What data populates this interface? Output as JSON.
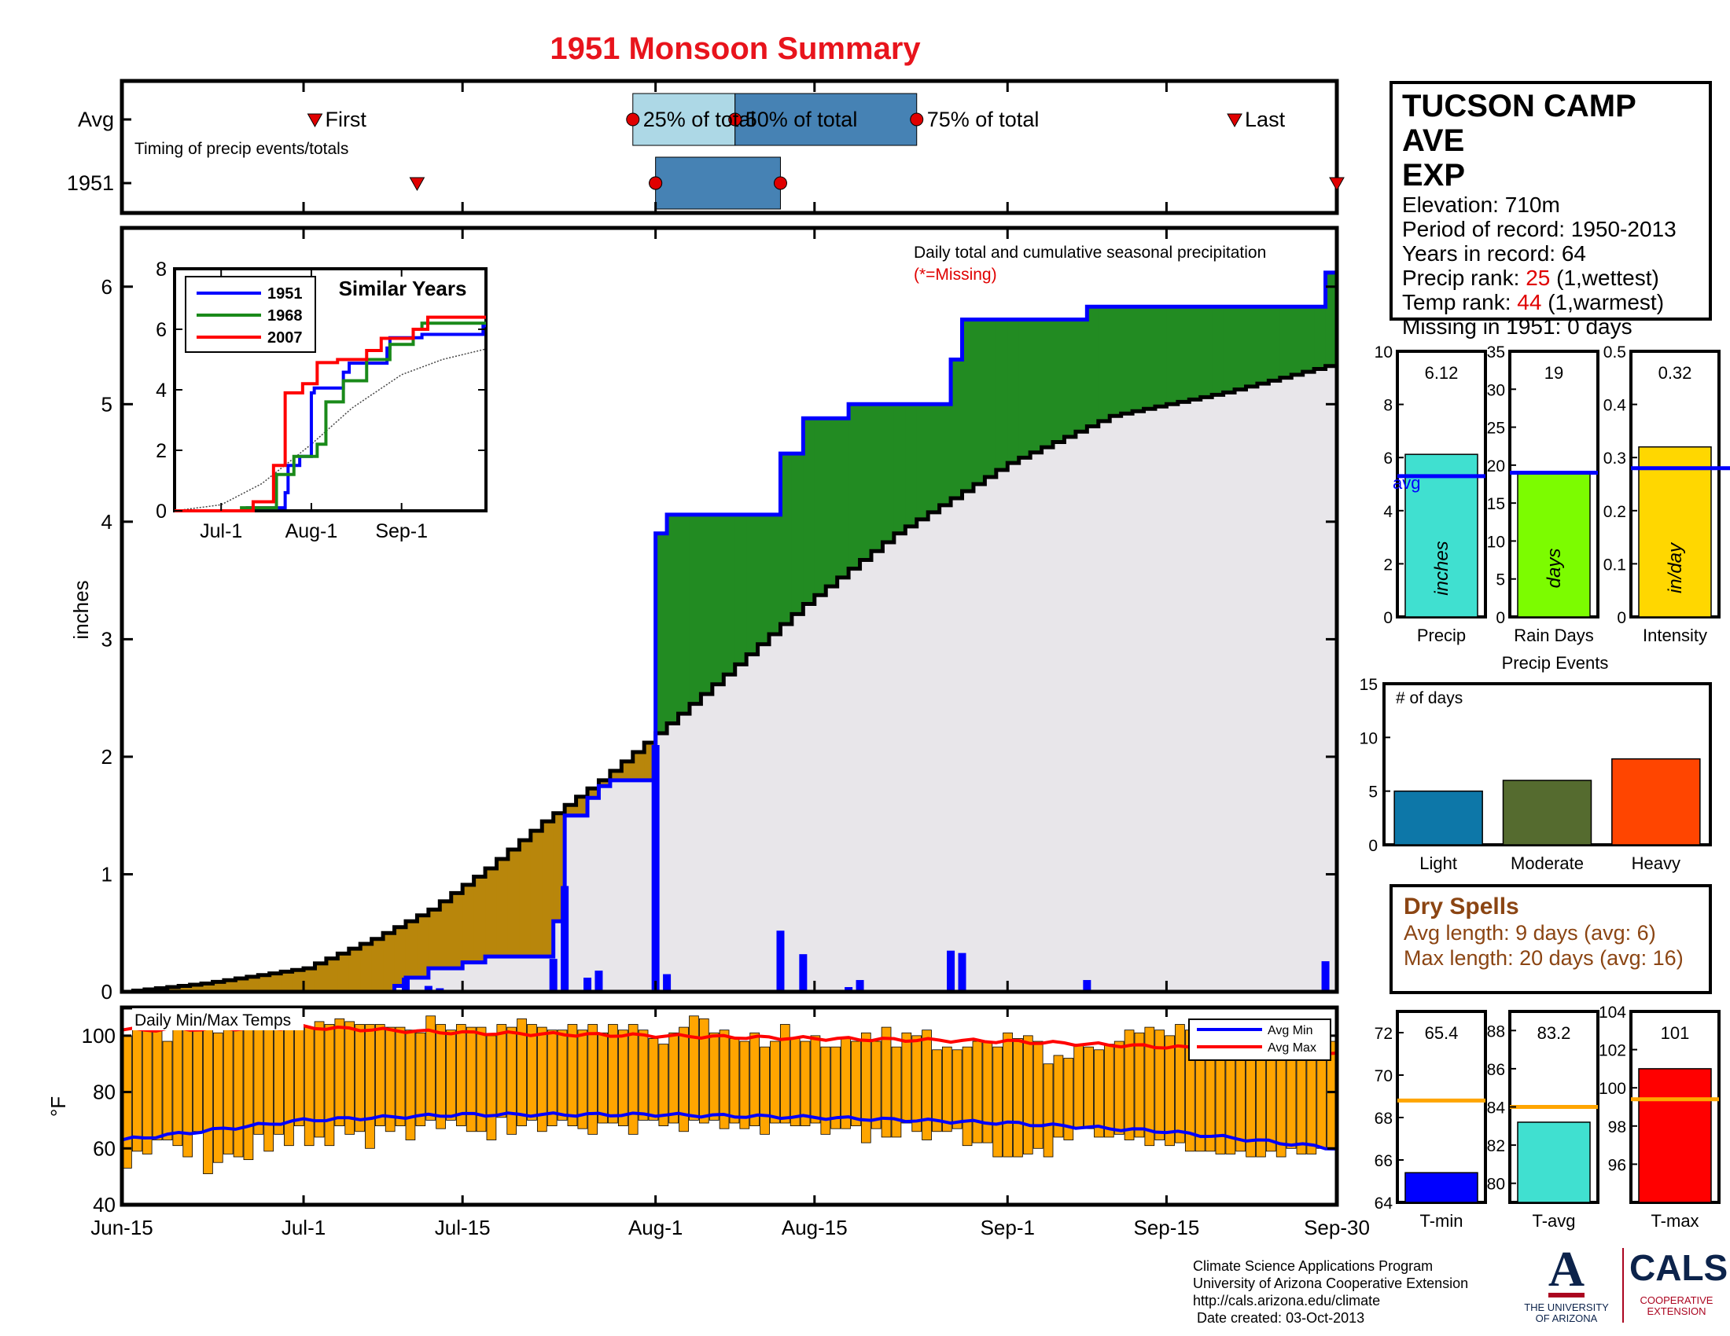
{
  "title": "1951 Monsoon Summary",
  "colors": {
    "title": "#e8141c",
    "precip_line": "#0000ff",
    "above_fill": "#228b22",
    "below_fill": "#b8860b",
    "cum_avg_fill": "#e8e6ea",
    "bar_light": "#add8e6",
    "bar_dark": "#4682b4",
    "temp_bar": "#ffa500",
    "avg_min": "#0000ff",
    "avg_max": "#ff0000"
  },
  "info": {
    "station_line1": "TUCSON CAMP AVE",
    "station_line2": "EXP",
    "elevation": "Elevation: 710m",
    "period": "Period of record: 1950-2013",
    "years": "Years in record: 64",
    "precip_rank_label": "Precip rank:",
    "precip_rank_value": "25",
    "precip_rank_note": "(1,wettest)",
    "temp_rank_label": "Temp rank:",
    "temp_rank_value": "44",
    "temp_rank_note": "(1,warmest)",
    "missing": "Missing in 1951: 0 days"
  },
  "dry_spells": {
    "title": "Dry Spells",
    "avg": "Avg length: 9 days (avg: 6)",
    "max": "Max length: 20 days (avg: 16)"
  },
  "footer": {
    "line1": "Climate Science Applications Program",
    "line2": "University of Arizona Cooperative Extension",
    "line3": "http://cals.arizona.edu/climate",
    "line4": " Date created: 03-Oct-2013"
  },
  "logos": {
    "ua_letter": "A",
    "ua_line1": "THE UNIVERSITY",
    "ua_line2": "OF ARIZONA",
    "cals": "CALS",
    "cals_line1": "COOPERATIVE",
    "cals_line2": "EXTENSION"
  },
  "chart_data": [
    {
      "id": "timing",
      "type": "bar",
      "title": "Timing of precip events/totals",
      "rows": [
        "Avg",
        "1951"
      ],
      "labels": {
        "first": "First",
        "p25": "25% of total",
        "p50": "50% of total",
        "p75": "75% of total",
        "last": "Last"
      },
      "avg": {
        "first": "Jul-2",
        "p25": "Jul-30",
        "p50": "Aug-8",
        "p75": "Aug-24",
        "last": "Sep-21"
      },
      "year": {
        "first": "Jul-11",
        "p25": "Aug-1",
        "p50": "Aug-1",
        "p75": "Aug-12",
        "last": "Sep-30"
      }
    },
    {
      "id": "precip",
      "type": "area",
      "title": "Daily total and cumulative seasonal precipitation",
      "subtitle": "(*=Missing)",
      "ylabel": "inches",
      "ylim": [
        0,
        6.5
      ],
      "yticks": [
        0,
        1,
        2,
        3,
        4,
        5,
        6
      ],
      "xticks": [
        "Jun-15",
        "Jul-1",
        "Jul-15",
        "Aug-1",
        "Aug-15",
        "Sep-1",
        "Sep-15",
        "Sep-30"
      ],
      "avg_cumulative": [
        {
          "x": "Jun-15",
          "y": 0
        },
        {
          "x": "Jun-22",
          "y": 0.07
        },
        {
          "x": "Jul-1",
          "y": 0.2
        },
        {
          "x": "Jul-7",
          "y": 0.45
        },
        {
          "x": "Jul-12",
          "y": 0.7
        },
        {
          "x": "Jul-17",
          "y": 1.05
        },
        {
          "x": "Jul-22",
          "y": 1.45
        },
        {
          "x": "Jul-27",
          "y": 1.8
        },
        {
          "x": "Aug-1",
          "y": 2.2
        },
        {
          "x": "Aug-7",
          "y": 2.7
        },
        {
          "x": "Aug-14",
          "y": 3.3
        },
        {
          "x": "Aug-22",
          "y": 3.9
        },
        {
          "x": "Sep-1",
          "y": 4.5
        },
        {
          "x": "Sep-10",
          "y": 4.9
        },
        {
          "x": "Sep-20",
          "y": 5.1
        },
        {
          "x": "Sep-30",
          "y": 5.35
        }
      ],
      "year_cumulative": [
        {
          "x": "Jun-15",
          "y": 0
        },
        {
          "x": "Jul-9",
          "y": 0.05
        },
        {
          "x": "Jul-10",
          "y": 0.12
        },
        {
          "x": "Jul-12",
          "y": 0.2
        },
        {
          "x": "Jul-15",
          "y": 0.25
        },
        {
          "x": "Jul-17",
          "y": 0.3
        },
        {
          "x": "Jul-23",
          "y": 0.6
        },
        {
          "x": "Jul-24",
          "y": 1.5
        },
        {
          "x": "Jul-26",
          "y": 1.65
        },
        {
          "x": "Jul-27",
          "y": 1.75
        },
        {
          "x": "Jul-28",
          "y": 1.8
        },
        {
          "x": "Aug-1",
          "y": 3.9
        },
        {
          "x": "Aug-2",
          "y": 4.06
        },
        {
          "x": "Aug-12",
          "y": 4.58
        },
        {
          "x": "Aug-14",
          "y": 4.88
        },
        {
          "x": "Aug-18",
          "y": 5.0
        },
        {
          "x": "Aug-27",
          "y": 5.38
        },
        {
          "x": "Aug-28",
          "y": 5.72
        },
        {
          "x": "Sep-8",
          "y": 5.83
        },
        {
          "x": "Sep-29",
          "y": 6.12
        }
      ],
      "daily_bars": [
        {
          "x": "Jul-10",
          "y": 0.12
        },
        {
          "x": "Jul-12",
          "y": 0.05
        },
        {
          "x": "Jul-13",
          "y": 0.03
        },
        {
          "x": "Jul-23",
          "y": 0.28
        },
        {
          "x": "Jul-24",
          "y": 0.9
        },
        {
          "x": "Jul-26",
          "y": 0.12
        },
        {
          "x": "Jul-27",
          "y": 0.18
        },
        {
          "x": "Aug-1",
          "y": 2.1
        },
        {
          "x": "Aug-2",
          "y": 0.15
        },
        {
          "x": "Aug-12",
          "y": 0.52
        },
        {
          "x": "Aug-14",
          "y": 0.32
        },
        {
          "x": "Aug-18",
          "y": 0.04
        },
        {
          "x": "Aug-19",
          "y": 0.1
        },
        {
          "x": "Aug-27",
          "y": 0.35
        },
        {
          "x": "Aug-28",
          "y": 0.33
        },
        {
          "x": "Sep-8",
          "y": 0.1
        },
        {
          "x": "Sep-29",
          "y": 0.26
        }
      ]
    },
    {
      "id": "similar",
      "type": "line",
      "title": "Similar Years",
      "ylim": [
        0,
        8
      ],
      "yticks": [
        0,
        2,
        4,
        6,
        8
      ],
      "xticks": [
        "Jul-1",
        "Aug-1",
        "Sep-1"
      ],
      "series": [
        {
          "name": "1951",
          "color": "#0000ff",
          "points": [
            {
              "x": "Jun-15",
              "y": 0
            },
            {
              "x": "Jul-10",
              "y": 0.1
            },
            {
              "x": "Jul-23",
              "y": 0.6
            },
            {
              "x": "Jul-24",
              "y": 1.5
            },
            {
              "x": "Jul-28",
              "y": 1.8
            },
            {
              "x": "Aug-1",
              "y": 3.9
            },
            {
              "x": "Aug-2",
              "y": 4.06
            },
            {
              "x": "Aug-12",
              "y": 4.58
            },
            {
              "x": "Aug-14",
              "y": 4.88
            },
            {
              "x": "Aug-27",
              "y": 5.38
            },
            {
              "x": "Aug-28",
              "y": 5.72
            },
            {
              "x": "Sep-8",
              "y": 5.83
            },
            {
              "x": "Sep-29",
              "y": 6.12
            }
          ]
        },
        {
          "name": "1968",
          "color": "#1a8a1a",
          "points": [
            {
              "x": "Jun-15",
              "y": 0
            },
            {
              "x": "Jul-8",
              "y": 0.1
            },
            {
              "x": "Jul-20",
              "y": 1.2
            },
            {
              "x": "Jul-26",
              "y": 1.8
            },
            {
              "x": "Aug-3",
              "y": 2.2
            },
            {
              "x": "Aug-6",
              "y": 3.6
            },
            {
              "x": "Aug-12",
              "y": 4.3
            },
            {
              "x": "Aug-20",
              "y": 5.0
            },
            {
              "x": "Aug-28",
              "y": 5.5
            },
            {
              "x": "Sep-5",
              "y": 6.0
            },
            {
              "x": "Sep-8",
              "y": 6.2
            },
            {
              "x": "Sep-30",
              "y": 6.2
            }
          ]
        },
        {
          "name": "2007",
          "color": "#ff0000",
          "points": [
            {
              "x": "Jun-15",
              "y": 0
            },
            {
              "x": "Jul-12",
              "y": 0.3
            },
            {
              "x": "Jul-19",
              "y": 1.5
            },
            {
              "x": "Jul-23",
              "y": 3.9
            },
            {
              "x": "Jul-29",
              "y": 4.2
            },
            {
              "x": "Aug-3",
              "y": 4.9
            },
            {
              "x": "Aug-10",
              "y": 5.0
            },
            {
              "x": "Aug-20",
              "y": 5.3
            },
            {
              "x": "Aug-25",
              "y": 5.7
            },
            {
              "x": "Sep-5",
              "y": 6.0
            },
            {
              "x": "Sep-10",
              "y": 6.4
            },
            {
              "x": "Sep-30",
              "y": 6.4
            }
          ]
        }
      ],
      "avg_line": [
        {
          "x": "Jun-15",
          "y": 0
        },
        {
          "x": "Jul-1",
          "y": 0.2
        },
        {
          "x": "Jul-15",
          "y": 0.9
        },
        {
          "x": "Aug-1",
          "y": 2.2
        },
        {
          "x": "Aug-15",
          "y": 3.4
        },
        {
          "x": "Sep-1",
          "y": 4.5
        },
        {
          "x": "Sep-15",
          "y": 5.0
        },
        {
          "x": "Sep-30",
          "y": 5.35
        }
      ]
    },
    {
      "id": "temps",
      "type": "bar",
      "title": "Daily Min/Max Temps",
      "ylabel": "°F",
      "ylim": [
        40,
        110
      ],
      "yticks": [
        40,
        60,
        80,
        100
      ],
      "xticks": [
        "Jun-15",
        "Jul-1",
        "Jul-15",
        "Aug-1",
        "Aug-15",
        "Sep-1",
        "Sep-15",
        "Sep-30"
      ],
      "legend": [
        "Avg Min",
        "Avg Max"
      ],
      "daily_max": [
        100,
        103,
        104,
        103,
        98,
        103,
        104,
        104,
        104,
        101,
        102,
        103,
        105,
        104,
        103,
        104,
        105,
        104,
        103,
        105,
        104,
        106,
        105,
        104,
        104,
        104,
        103,
        103,
        102,
        101,
        107,
        104,
        102,
        104,
        103,
        103,
        100,
        104,
        103,
        106,
        104,
        103,
        102,
        102,
        104,
        102,
        104,
        101,
        104,
        102,
        104,
        102,
        99,
        97,
        101,
        103,
        107,
        106,
        101,
        102,
        99,
        98,
        101,
        96,
        98,
        104,
        99,
        98,
        100,
        96,
        96,
        99,
        98,
        101,
        98,
        103,
        96,
        101,
        100,
        102,
        95,
        96,
        95,
        96,
        98,
        98,
        96,
        101,
        99,
        100,
        98,
        90,
        93,
        92,
        97,
        96,
        95,
        97,
        98,
        102,
        101,
        103,
        102,
        100,
        104,
        102,
        100,
        98,
        97,
        102,
        99,
        103,
        103,
        100,
        102,
        105,
        105,
        105,
        105,
        98
      ],
      "daily_min": [
        53,
        59,
        58,
        63,
        63,
        61,
        57,
        66,
        51,
        55,
        58,
        57,
        56,
        65,
        59,
        65,
        61,
        68,
        61,
        64,
        61,
        68,
        65,
        66,
        60,
        68,
        66,
        68,
        63,
        68,
        70,
        67,
        70,
        68,
        66,
        66,
        63,
        71,
        65,
        68,
        70,
        66,
        68,
        70,
        68,
        67,
        65,
        69,
        69,
        68,
        65,
        70,
        70,
        68,
        69,
        66,
        70,
        69,
        70,
        67,
        69,
        67,
        68,
        65,
        69,
        69,
        68,
        68,
        69,
        65,
        67,
        67,
        68,
        62,
        67,
        64,
        64,
        69,
        66,
        63,
        66,
        66,
        67,
        61,
        62,
        62,
        57,
        57,
        57,
        58,
        60,
        57,
        64,
        63,
        67,
        67,
        64,
        64,
        65,
        63,
        64,
        61,
        63,
        61,
        62,
        59,
        59,
        59,
        58,
        58,
        59,
        57,
        57,
        59,
        57,
        60,
        58,
        58,
        60,
        60
      ],
      "avg_max": [
        {
          "x": "Jun-15",
          "y": 102
        },
        {
          "x": "Jul-1",
          "y": 103
        },
        {
          "x": "Jul-15",
          "y": 101
        },
        {
          "x": "Aug-1",
          "y": 100
        },
        {
          "x": "Aug-15",
          "y": 99
        },
        {
          "x": "Sep-1",
          "y": 98
        },
        {
          "x": "Sep-15",
          "y": 96
        },
        {
          "x": "Sep-30",
          "y": 94
        }
      ],
      "avg_min": [
        {
          "x": "Jun-15",
          "y": 63
        },
        {
          "x": "Jul-1",
          "y": 70
        },
        {
          "x": "Jul-15",
          "y": 72
        },
        {
          "x": "Aug-1",
          "y": 72
        },
        {
          "x": "Aug-15",
          "y": 71
        },
        {
          "x": "Sep-1",
          "y": 69
        },
        {
          "x": "Sep-15",
          "y": 66
        },
        {
          "x": "Sep-30",
          "y": 60
        }
      ]
    },
    {
      "id": "precip_stat",
      "type": "bar",
      "label": "Precip",
      "unit": "inches",
      "value": 6.12,
      "value_label": "6.12",
      "avg": 5.3,
      "avg_label": "avg",
      "ylim": [
        0,
        10
      ],
      "yticks": [
        0,
        2,
        4,
        6,
        8,
        10
      ],
      "color": "#40e0d0"
    },
    {
      "id": "raindays_stat",
      "type": "bar",
      "label": "Rain Days",
      "unit": "days",
      "value": 19,
      "value_label": "19",
      "avg": 19,
      "ylim": [
        0,
        35
      ],
      "yticks": [
        0,
        5,
        10,
        15,
        20,
        25,
        30,
        35
      ],
      "color": "#7cfc00"
    },
    {
      "id": "intensity_stat",
      "type": "bar",
      "label": "Intensity",
      "unit": "in/day",
      "value": 0.32,
      "value_label": "0.32",
      "avg": 0.28,
      "ylim": [
        0,
        0.5
      ],
      "yticks": [
        0,
        0.1,
        0.2,
        0.3,
        0.4,
        0.5
      ],
      "color": "#ffd700"
    },
    {
      "id": "events",
      "type": "bar",
      "title": "Precip Events",
      "ylabel": "# of days",
      "categories": [
        "Light",
        "Moderate",
        "Heavy"
      ],
      "values": [
        5,
        6,
        8
      ],
      "colors": [
        "#0d77a8",
        "#556b2f",
        "#ff4500"
      ],
      "ylim": [
        0,
        15
      ],
      "yticks": [
        0,
        5,
        10,
        15
      ]
    },
    {
      "id": "tmin_stat",
      "type": "bar",
      "label": "T-min",
      "value": 65.4,
      "value_label": "65.4",
      "avg": 68.8,
      "ylim": [
        64,
        73
      ],
      "yticks": [
        64,
        66,
        68,
        70,
        72
      ],
      "color": "#0000ff"
    },
    {
      "id": "tavg_stat",
      "type": "bar",
      "label": "T-avg",
      "value": 83.2,
      "value_label": "83.2",
      "avg": 84,
      "ylim": [
        79,
        89
      ],
      "yticks": [
        80,
        82,
        84,
        86,
        88
      ],
      "color": "#40e0d0"
    },
    {
      "id": "tmax_stat",
      "type": "bar",
      "label": "T-max",
      "value": 101,
      "value_label": "101",
      "avg": 99.4,
      "ylim": [
        94,
        104
      ],
      "yticks": [
        96,
        98,
        100,
        102,
        104
      ],
      "color": "#ff0000"
    }
  ]
}
